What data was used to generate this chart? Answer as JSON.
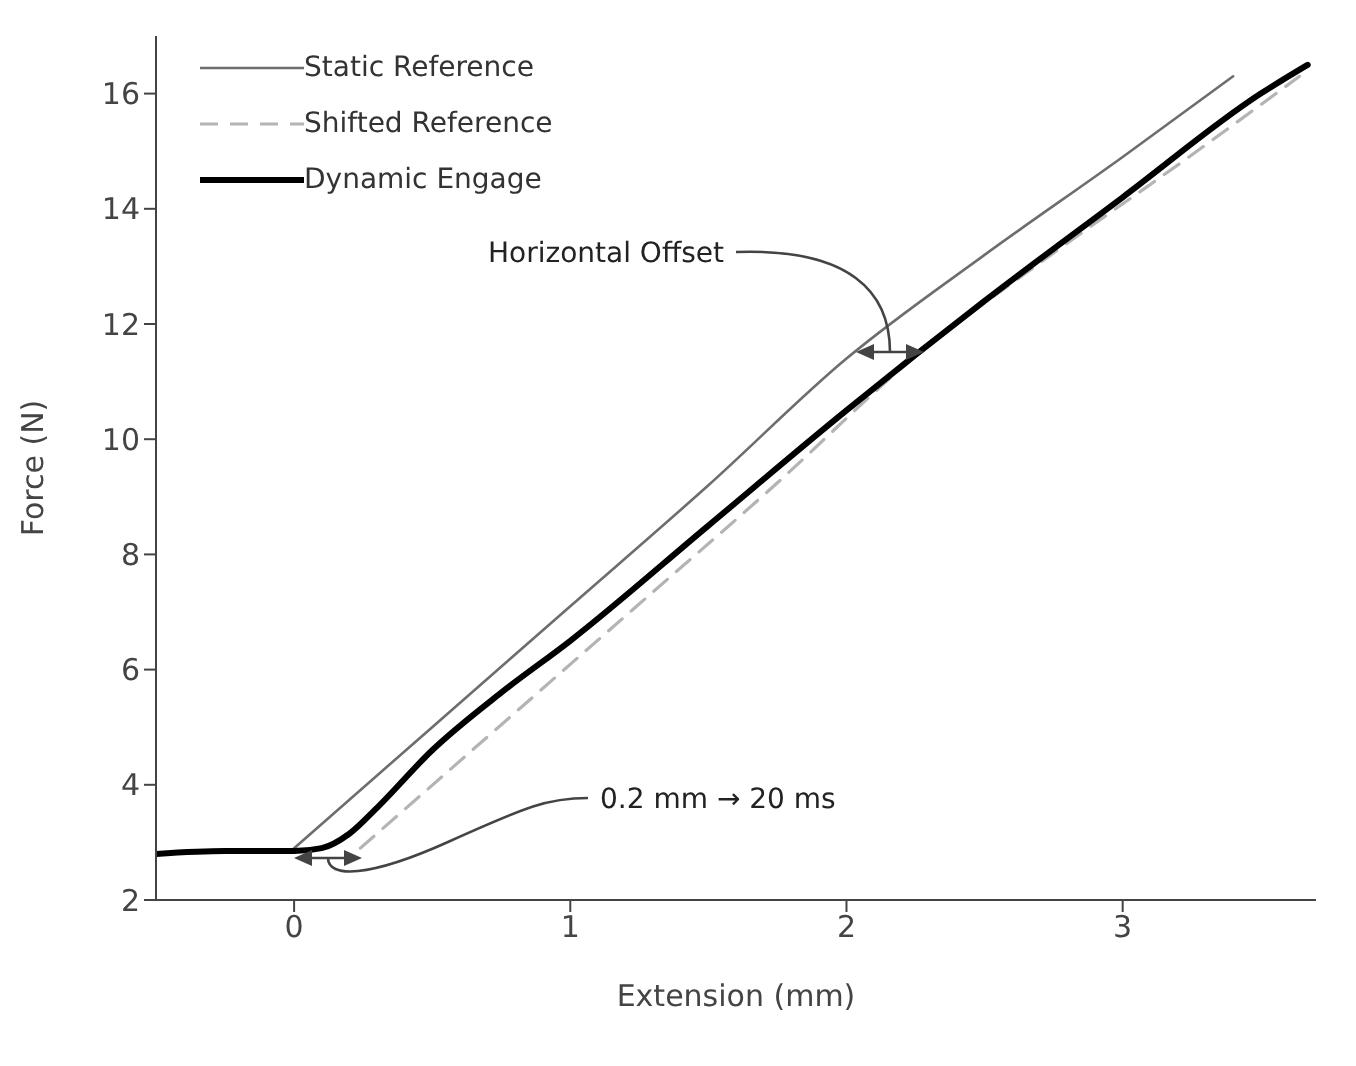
{
  "chart_data": {
    "type": "line",
    "xlabel": "Extension (mm)",
    "ylabel": "Force (N)",
    "xlim": [
      -0.5,
      3.7
    ],
    "xticks": [
      0,
      1,
      2,
      3
    ],
    "ylim": [
      2,
      17
    ],
    "yticks": [
      2,
      4,
      6,
      8,
      10,
      12,
      14,
      16
    ],
    "grid": false,
    "legend": "top left",
    "marker": "none",
    "series": [
      {
        "name": "Static Reference",
        "color": "#6d6d6d",
        "line_style": "solid",
        "x": [
          0,
          0.5,
          1,
          1.5,
          2,
          2.5,
          3,
          3.4
        ],
        "values": [
          2.9,
          5.0,
          7.1,
          9.2,
          11.4,
          13.2,
          14.9,
          16.3
        ]
      },
      {
        "name": "Shifted Reference",
        "color": "#b4b4b4",
        "line_style": "dashed",
        "x": [
          0.24,
          0.74,
          1.24,
          1.74,
          2.24,
          2.74,
          3.24,
          3.64
        ],
        "values": [
          2.9,
          5.0,
          7.1,
          9.2,
          11.4,
          13.2,
          14.9,
          16.3
        ]
      },
      {
        "name": "Dynamic Engage",
        "color": "#000000",
        "line_style": "solid",
        "x": [
          -0.5,
          -0.25,
          0,
          0.1,
          0.2,
          0.3,
          0.5,
          0.75,
          1,
          1.5,
          2,
          2.5,
          3,
          3.5,
          3.67
        ],
        "values": [
          2.8,
          2.85,
          2.85,
          2.9,
          3.15,
          3.6,
          4.6,
          5.6,
          6.5,
          8.5,
          10.5,
          12.4,
          14.2,
          16.0,
          16.5
        ]
      }
    ],
    "annotations": [
      "Horizontal Offset",
      "0.2 mm → 20 ms"
    ]
  }
}
